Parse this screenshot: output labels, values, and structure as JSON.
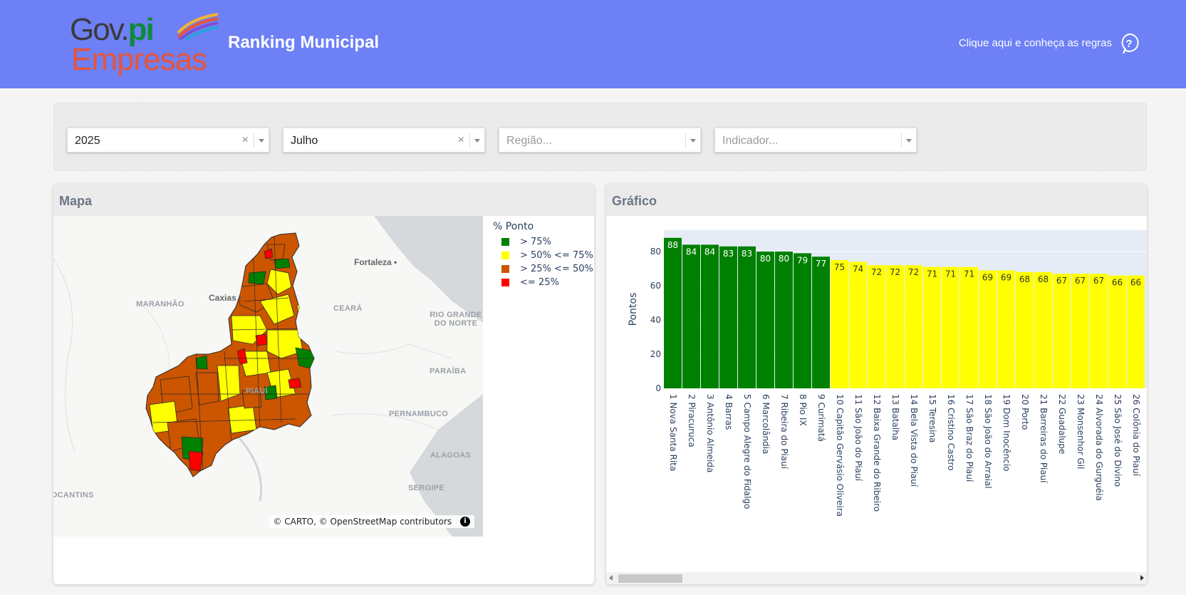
{
  "header": {
    "logo_text_1": "Gov.",
    "logo_text_2": "pi",
    "logo_text_3": "Empresas",
    "title": "Ranking Municipal",
    "rules_link": "Clique aqui e conheça as regras",
    "help_icon": "question-circle-icon"
  },
  "filters": {
    "year": {
      "value": "2025"
    },
    "month": {
      "value": "Julho"
    },
    "region": {
      "placeholder": "Região..."
    },
    "indicator": {
      "placeholder": "Indicador..."
    }
  },
  "map": {
    "title": "Mapa",
    "legend_title": "% Ponto",
    "legend": [
      {
        "label": "> 75%",
        "color": "#008000"
      },
      {
        "label": "> 50% <= 75%",
        "color": "#ffff00"
      },
      {
        "label": "> 25% <= 50%",
        "color": "#cc5500"
      },
      {
        "label": "<= 25%",
        "color": "#ff0000"
      }
    ],
    "place_labels": [
      "MARANHÃO",
      "CEARÁ",
      "RIO GRANDE DO NORTE",
      "PARAÍBA",
      "PERNAMBUCO",
      "ALAGOAS",
      "SERGIPE",
      "TOCANTINS",
      "PIAUÍ"
    ],
    "city_labels": [
      "Fortaleza",
      "Caxias"
    ],
    "attribution": "© CARTO, © OpenStreetMap contributors"
  },
  "chart": {
    "title": "Gráfico",
    "colors": {
      "green": "#008000",
      "yellow": "#ffff00",
      "plot_bg": "#e5ecf6"
    }
  },
  "chart_data": {
    "type": "bar",
    "ylabel": "Pontos",
    "yticks": [
      0,
      20,
      40,
      60,
      80
    ],
    "ylim": [
      0,
      92.5
    ],
    "categories": [
      "1 Nova Santa Rita",
      "2 Piracuruca",
      "3 Antônio Almeida",
      "4 Barras",
      "5 Campo Alegre do Fidalgo",
      "6 Marcolândia",
      "7 Ribeira do Piauí",
      "8 Pio IX",
      "9 Curimatá",
      "10 Capitão Gervásio Oliveira",
      "11 São João do Piauí",
      "12 Baixa Grande do Ribeiro",
      "13 Batalha",
      "14 Bela Vista do Piauí",
      "15 Teresina",
      "16 Cristino Castro",
      "17 São Braz do Piauí",
      "18 São João do Arraial",
      "19 Dom Inocêncio",
      "20 Porto",
      "21 Barreiras do Piauí",
      "22 Guadalupe",
      "23 Monsenhor Gil",
      "24 Alvorada do Gurguéia",
      "25 São José do Divino",
      "26 Colônia do Piauí"
    ],
    "values": [
      88,
      84,
      84,
      83,
      83,
      80,
      80,
      79,
      77,
      75,
      74,
      72,
      72,
      72,
      71,
      71,
      71,
      69,
      69,
      68,
      68,
      67,
      67,
      67,
      66,
      66
    ],
    "colors": [
      "green",
      "green",
      "green",
      "green",
      "green",
      "green",
      "green",
      "green",
      "green",
      "yellow",
      "yellow",
      "yellow",
      "yellow",
      "yellow",
      "yellow",
      "yellow",
      "yellow",
      "yellow",
      "yellow",
      "yellow",
      "yellow",
      "yellow",
      "yellow",
      "yellow",
      "yellow",
      "yellow"
    ]
  }
}
